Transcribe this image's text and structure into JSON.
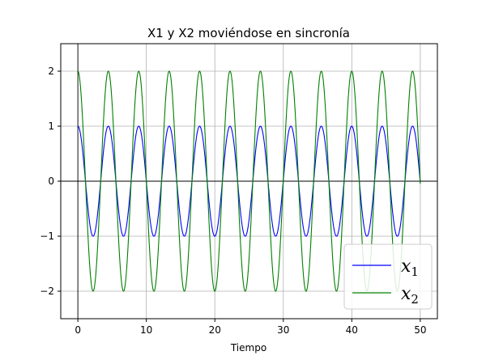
{
  "chart_data": {
    "type": "line",
    "title": "X1 y X2 moviéndose en sincronía",
    "xlabel": "Tiempo",
    "ylabel": "",
    "xlim": [
      -2.5,
      52.5
    ],
    "ylim": [
      -2.5,
      2.5
    ],
    "xticks": [
      0,
      10,
      20,
      30,
      40,
      50
    ],
    "yticks": [
      -2,
      -1,
      0,
      1,
      2
    ],
    "x_tick_labels": [
      "0",
      "10",
      "20",
      "30",
      "40",
      "50"
    ],
    "y_tick_labels": [
      "−2",
      "−1",
      "0",
      "1",
      "2"
    ],
    "grid": true,
    "reference_lines": {
      "y": 0,
      "x": 0
    },
    "legend": {
      "position": "lower-right"
    },
    "t_range": [
      0,
      50
    ],
    "series": [
      {
        "name": "x",
        "subscript": "1",
        "color": "#0000ff",
        "amplitude": 1,
        "period": 4.443,
        "function": "cos"
      },
      {
        "name": "x",
        "subscript": "2",
        "color": "#008000",
        "amplitude": 2,
        "period": 4.443,
        "function": "cos"
      }
    ]
  }
}
